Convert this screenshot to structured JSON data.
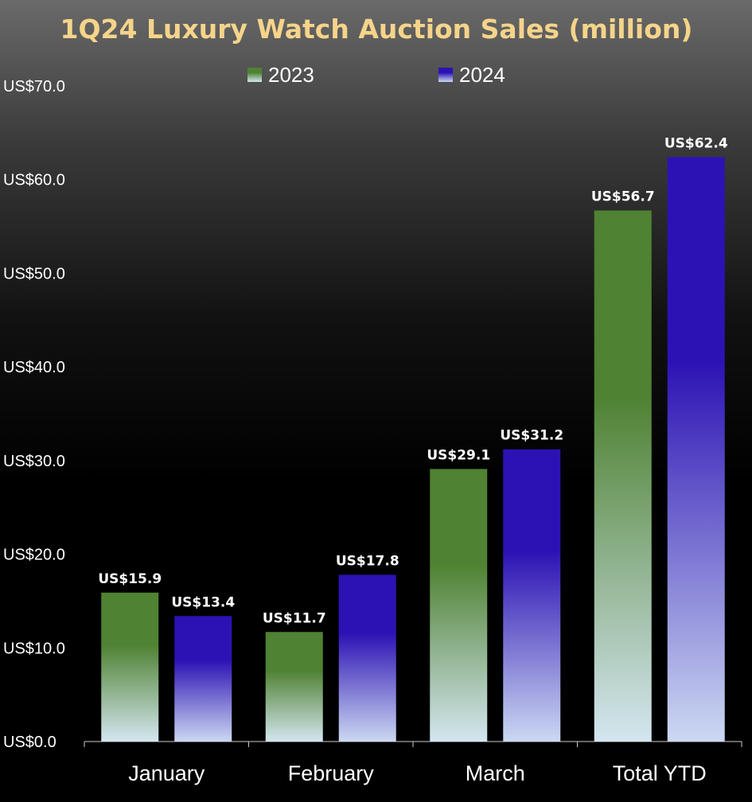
{
  "chart_data": {
    "type": "bar",
    "title": "1Q24 Luxury Watch Auction Sales (million)",
    "xlabel": "",
    "ylabel": "",
    "categories": [
      "January",
      "February",
      "March",
      "Total YTD"
    ],
    "series": [
      {
        "name": "2023",
        "values": [
          15.9,
          11.7,
          29.1,
          56.7
        ],
        "labels": [
          "US$15.9",
          "US$11.7",
          "US$29.1",
          "US$56.7"
        ]
      },
      {
        "name": "2024",
        "values": [
          13.4,
          17.8,
          31.2,
          62.4
        ],
        "labels": [
          "US$13.4",
          "US$17.8",
          "US$31.2",
          "US$62.4"
        ]
      }
    ],
    "y_ticks": [
      0,
      10,
      20,
      30,
      40,
      50,
      60,
      70
    ],
    "y_tick_labels": [
      "US$0.0",
      "US$10.0",
      "US$20.0",
      "US$30.0",
      "US$40.0",
      "US$50.0",
      "US$60.0",
      "US$70.0"
    ],
    "ylim": [
      0,
      70
    ],
    "grid": false,
    "legend_position": "top-center",
    "colors": {
      "title": "#f5d48a",
      "series_2023_top": "#4f8232",
      "series_2023_bottom": "#d4e6f0",
      "series_2024_top": "#2c12b4",
      "series_2024_bottom": "#ccd8f2",
      "text": "#ffffff",
      "axis": "#cccccc"
    }
  }
}
